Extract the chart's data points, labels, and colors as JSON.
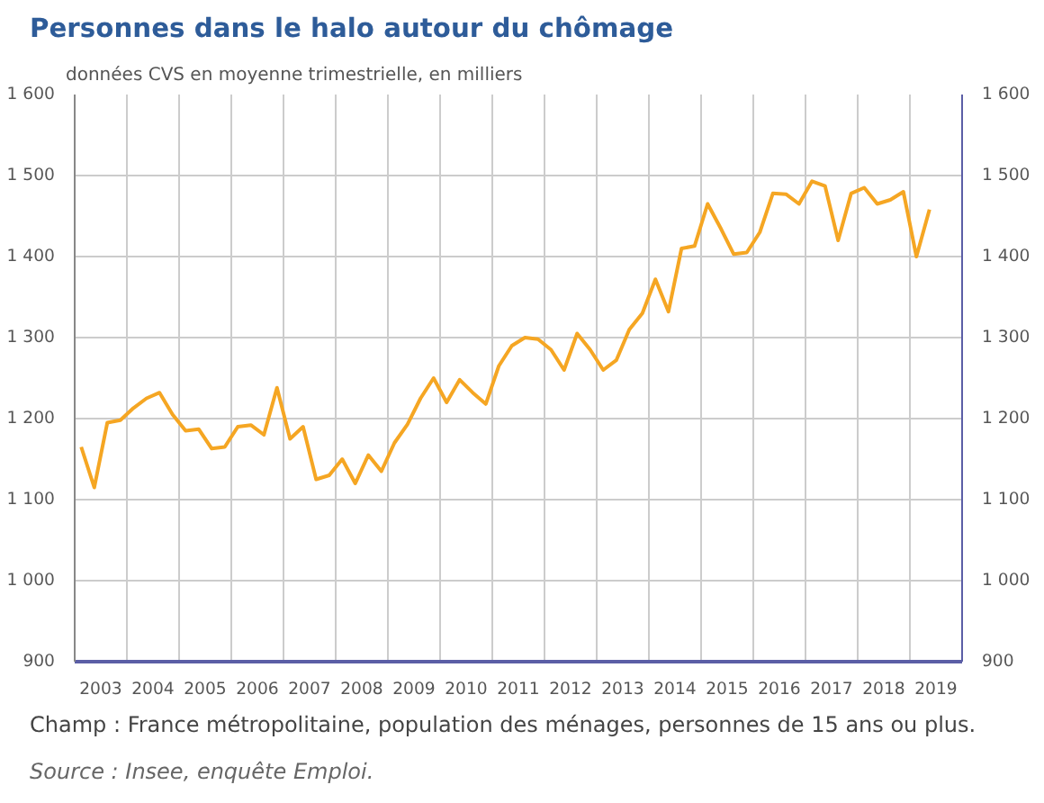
{
  "chart_data": {
    "type": "line",
    "title": "Personnes dans le halo autour du chômage",
    "subtitle": "données CVS en moyenne trimestrielle, en milliers",
    "annotations": [
      "Champ : France métropolitaine, population des ménages, personnes de 15 ans ou plus.",
      "Source : Insee, enquête Emploi."
    ],
    "x": [
      2003.125,
      2003.375,
      2003.625,
      2003.875,
      2004.125,
      2004.375,
      2004.625,
      2004.875,
      2005.125,
      2005.375,
      2005.625,
      2005.875,
      2006.125,
      2006.375,
      2006.625,
      2006.875,
      2007.125,
      2007.375,
      2007.625,
      2007.875,
      2008.125,
      2008.375,
      2008.625,
      2008.875,
      2009.125,
      2009.375,
      2009.625,
      2009.875,
      2010.125,
      2010.375,
      2010.625,
      2010.875,
      2011.125,
      2011.375,
      2011.625,
      2011.875,
      2012.125,
      2012.375,
      2012.625,
      2012.875,
      2013.125,
      2013.375,
      2013.625,
      2013.875,
      2014.125,
      2014.375,
      2014.625,
      2014.875,
      2015.125,
      2015.375,
      2015.625,
      2015.875,
      2016.125,
      2016.375,
      2016.625,
      2016.875,
      2017.125,
      2017.375,
      2017.625,
      2017.875,
      2018.125,
      2018.375,
      2018.625,
      2018.875,
      2019.125,
      2019.375
    ],
    "series": [
      {
        "color": "#f5a623",
        "values": [
          1165,
          1115,
          1195,
          1198,
          1213,
          1225,
          1232,
          1205,
          1185,
          1187,
          1163,
          1165,
          1190,
          1192,
          1180,
          1238,
          1175,
          1190,
          1125,
          1130,
          1150,
          1120,
          1155,
          1135,
          1170,
          1193,
          1225,
          1250,
          1220,
          1248,
          1232,
          1218,
          1265,
          1290,
          1300,
          1298,
          1285,
          1260,
          1305,
          1285,
          1260,
          1272,
          1310,
          1330,
          1372,
          1332,
          1410,
          1413,
          1465,
          1435,
          1403,
          1405,
          1430,
          1478,
          1477,
          1465,
          1493,
          1487,
          1420,
          1478,
          1485,
          1465,
          1470,
          1480,
          1400,
          1458
        ]
      }
    ],
    "xlim": [
      2003,
      2020
    ],
    "xticks": [
      {
        "value": 2003,
        "label": null
      },
      {
        "value": 2003.5,
        "label": "2003"
      },
      {
        "value": 2004,
        "label": null
      },
      {
        "value": 2004.5,
        "label": "2004"
      },
      {
        "value": 2005,
        "label": null
      },
      {
        "value": 2005.5,
        "label": "2005"
      },
      {
        "value": 2006,
        "label": null
      },
      {
        "value": 2006.5,
        "label": "2006"
      },
      {
        "value": 2007,
        "label": null
      },
      {
        "value": 2007.5,
        "label": "2007"
      },
      {
        "value": 2008,
        "label": null
      },
      {
        "value": 2008.5,
        "label": "2008"
      },
      {
        "value": 2009,
        "label": null
      },
      {
        "value": 2009.5,
        "label": "2009"
      },
      {
        "value": 2010,
        "label": null
      },
      {
        "value": 2010.5,
        "label": "2010"
      },
      {
        "value": 2011,
        "label": null
      },
      {
        "value": 2011.5,
        "label": "2011"
      },
      {
        "value": 2012,
        "label": null
      },
      {
        "value": 2012.5,
        "label": "2012"
      },
      {
        "value": 2013,
        "label": null
      },
      {
        "value": 2013.5,
        "label": "2013"
      },
      {
        "value": 2014,
        "label": null
      },
      {
        "value": 2014.5,
        "label": "2014"
      },
      {
        "value": 2015,
        "label": null
      },
      {
        "value": 2015.5,
        "label": "2015"
      },
      {
        "value": 2016,
        "label": null
      },
      {
        "value": 2016.5,
        "label": "2016"
      },
      {
        "value": 2017,
        "label": null
      },
      {
        "value": 2017.5,
        "label": "2017"
      },
      {
        "value": 2018,
        "label": null
      },
      {
        "value": 2018.5,
        "label": "2018"
      },
      {
        "value": 2019,
        "label": null
      },
      {
        "value": 2019.5,
        "label": "2019"
      },
      {
        "value": 2020,
        "label": null
      }
    ],
    "ylim": [
      900,
      1600
    ],
    "yticks": [
      {
        "value": 900,
        "label": "900"
      },
      {
        "value": 1000,
        "label": "1 000"
      },
      {
        "value": 1100,
        "label": "1 100"
      },
      {
        "value": 1200,
        "label": "1 200"
      },
      {
        "value": 1300,
        "label": "1 300"
      },
      {
        "value": 1400,
        "label": "1 400"
      },
      {
        "value": 1500,
        "label": "1 500"
      },
      {
        "value": 1600,
        "label": "1 600"
      }
    ],
    "y2lim": [
      900,
      1600
    ],
    "y2ticks": [
      {
        "value": 900,
        "label": "900"
      },
      {
        "value": 1000,
        "label": "1 000"
      },
      {
        "value": 1100,
        "label": "1 100"
      },
      {
        "value": 1200,
        "label": "1 200"
      },
      {
        "value": 1300,
        "label": "1 300"
      },
      {
        "value": 1400,
        "label": "1 400"
      },
      {
        "value": 1500,
        "label": "1 500"
      },
      {
        "value": 1600,
        "label": "1 600"
      }
    ],
    "grid": true,
    "marker": "none",
    "line_style": "solid"
  }
}
